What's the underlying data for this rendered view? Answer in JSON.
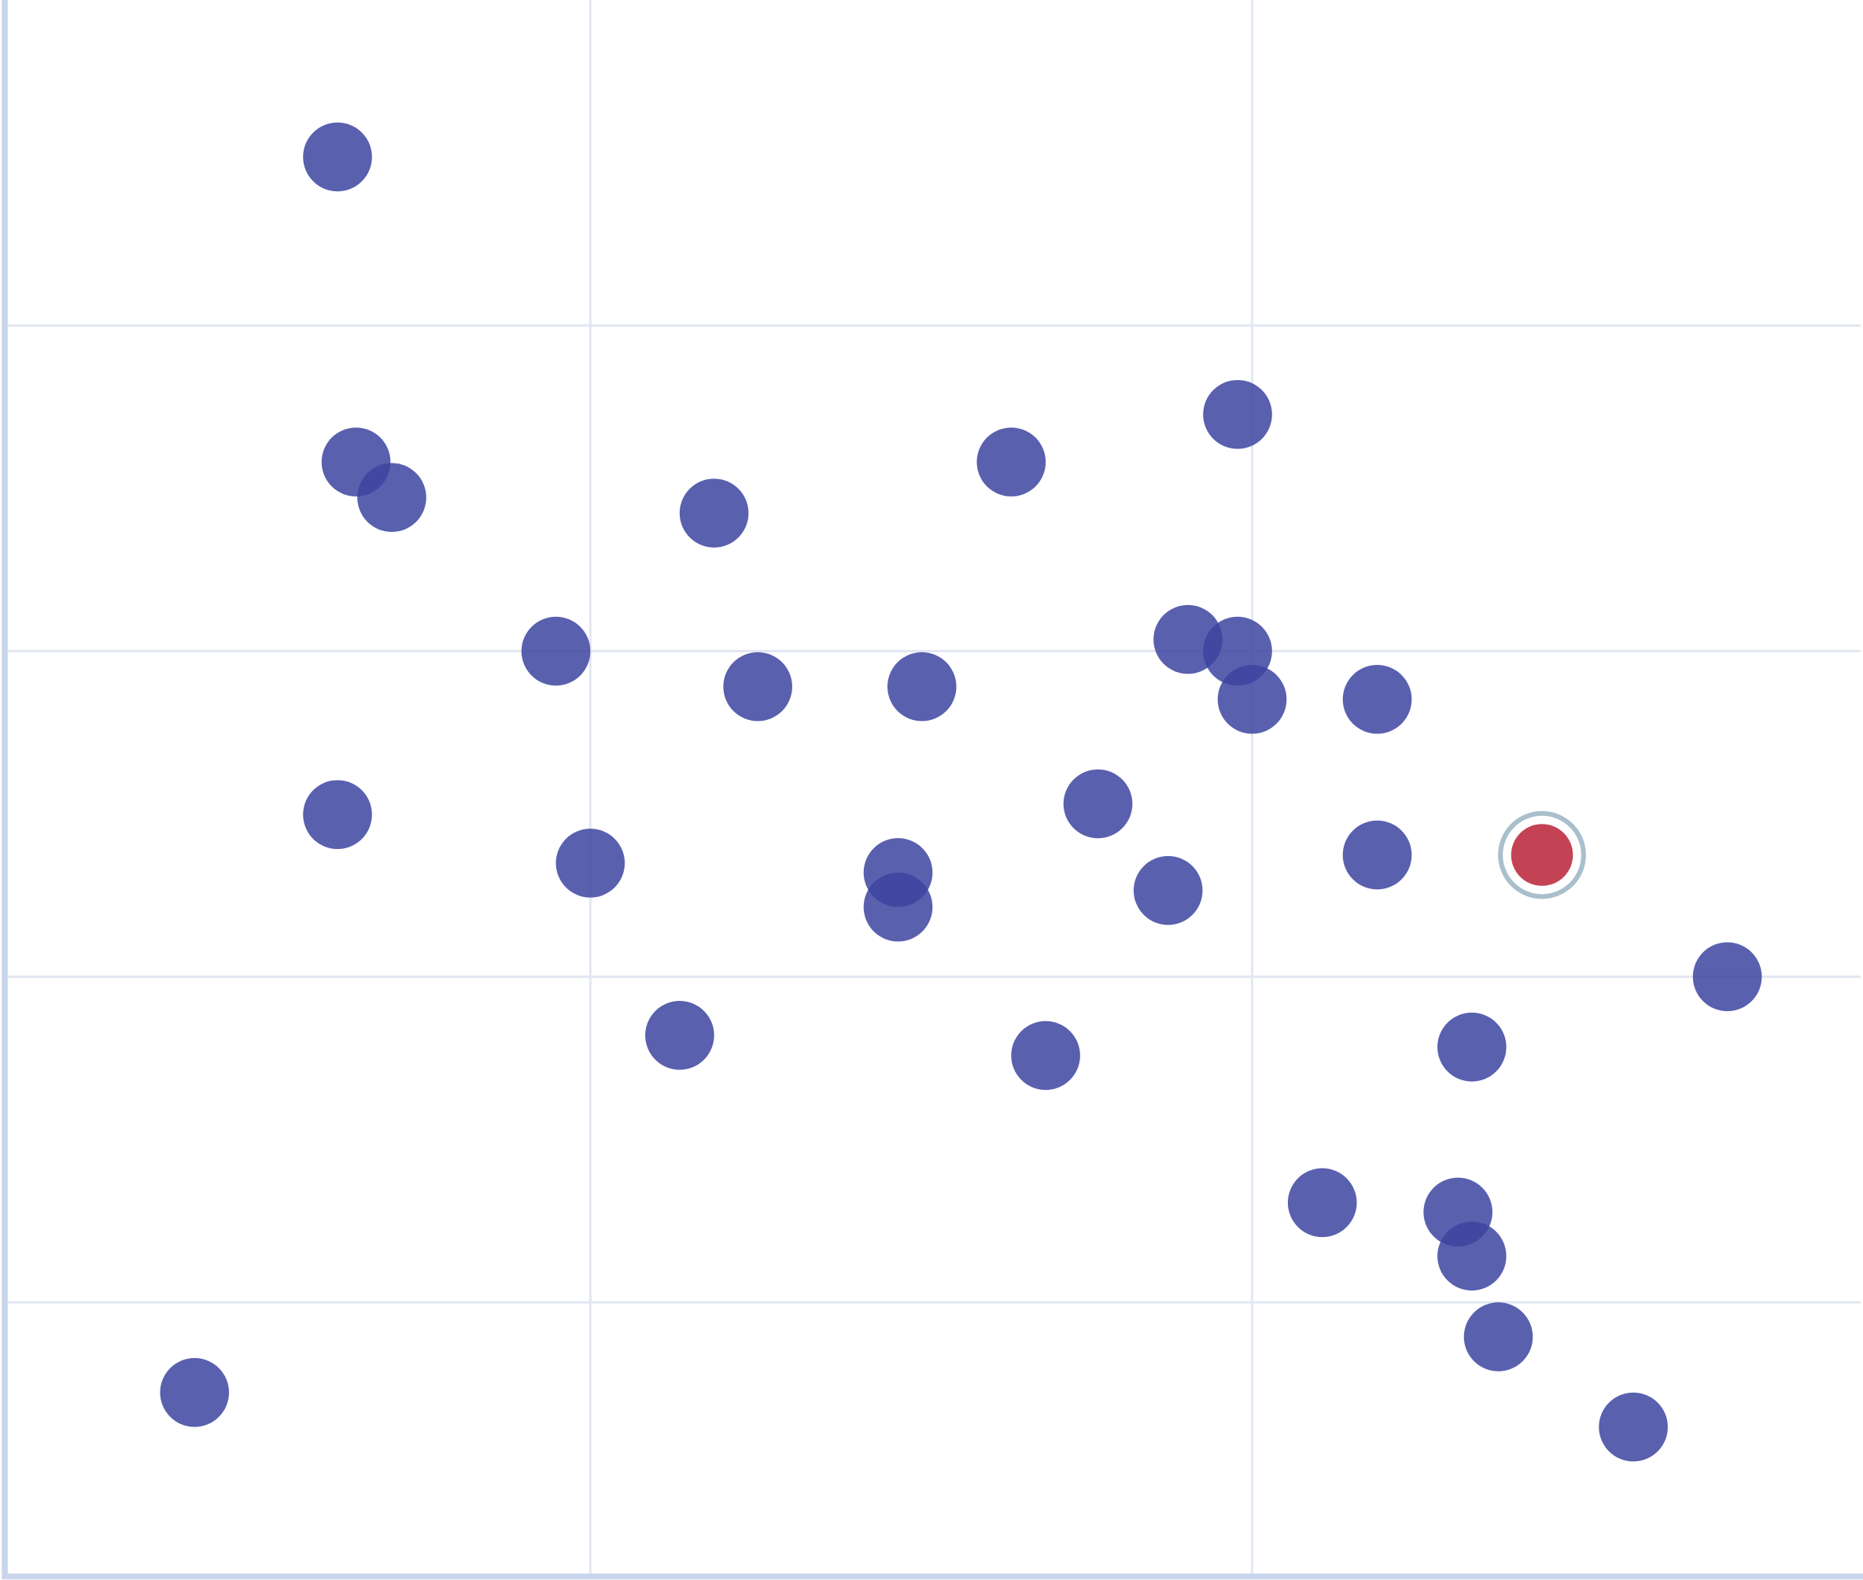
{
  "chart_data": {
    "type": "scatter",
    "title": "",
    "xlabel": "",
    "ylabel": "",
    "xlim": [
      0.117,
      2.923
    ],
    "ylim": [
      0.158,
      5.0
    ],
    "x_gridlines": [
      1,
      2
    ],
    "y_gridlines": [
      1,
      2,
      3,
      4
    ],
    "grid": true,
    "legend": "none",
    "colors": {
      "point": "#3c44a0",
      "highlight_point": "#c0394b",
      "highlight_ring": "#a9bfcc",
      "grid": "#e3e6f3",
      "axis": "#c9d5ea"
    },
    "points": [
      {
        "x": 0.618,
        "y": 4.518
      },
      {
        "x": 0.646,
        "y": 3.581
      },
      {
        "x": 0.7,
        "y": 3.472
      },
      {
        "x": 1.187,
        "y": 3.424
      },
      {
        "x": 1.636,
        "y": 3.581
      },
      {
        "x": 1.978,
        "y": 3.727
      },
      {
        "x": 0.948,
        "y": 3.0
      },
      {
        "x": 1.253,
        "y": 2.891
      },
      {
        "x": 1.501,
        "y": 2.891
      },
      {
        "x": 1.903,
        "y": 3.036
      },
      {
        "x": 1.978,
        "y": 3.0
      },
      {
        "x": 2.0,
        "y": 2.852
      },
      {
        "x": 2.189,
        "y": 2.852
      },
      {
        "x": 0.618,
        "y": 2.498
      },
      {
        "x": 1.0,
        "y": 2.349
      },
      {
        "x": 1.465,
        "y": 2.32
      },
      {
        "x": 1.465,
        "y": 2.214
      },
      {
        "x": 1.767,
        "y": 2.531
      },
      {
        "x": 1.873,
        "y": 2.265
      },
      {
        "x": 2.189,
        "y": 2.374
      },
      {
        "x": 2.718,
        "y": 2.0
      },
      {
        "x": 1.135,
        "y": 1.82
      },
      {
        "x": 1.688,
        "y": 1.758
      },
      {
        "x": 2.332,
        "y": 1.784
      },
      {
        "x": 2.106,
        "y": 1.306
      },
      {
        "x": 2.311,
        "y": 1.277
      },
      {
        "x": 2.332,
        "y": 1.142
      },
      {
        "x": 2.372,
        "y": 0.894
      },
      {
        "x": 0.402,
        "y": 0.723
      },
      {
        "x": 2.576,
        "y": 0.617
      }
    ],
    "highlighted_points": [
      {
        "x": 2.438,
        "y": 2.374
      }
    ]
  }
}
